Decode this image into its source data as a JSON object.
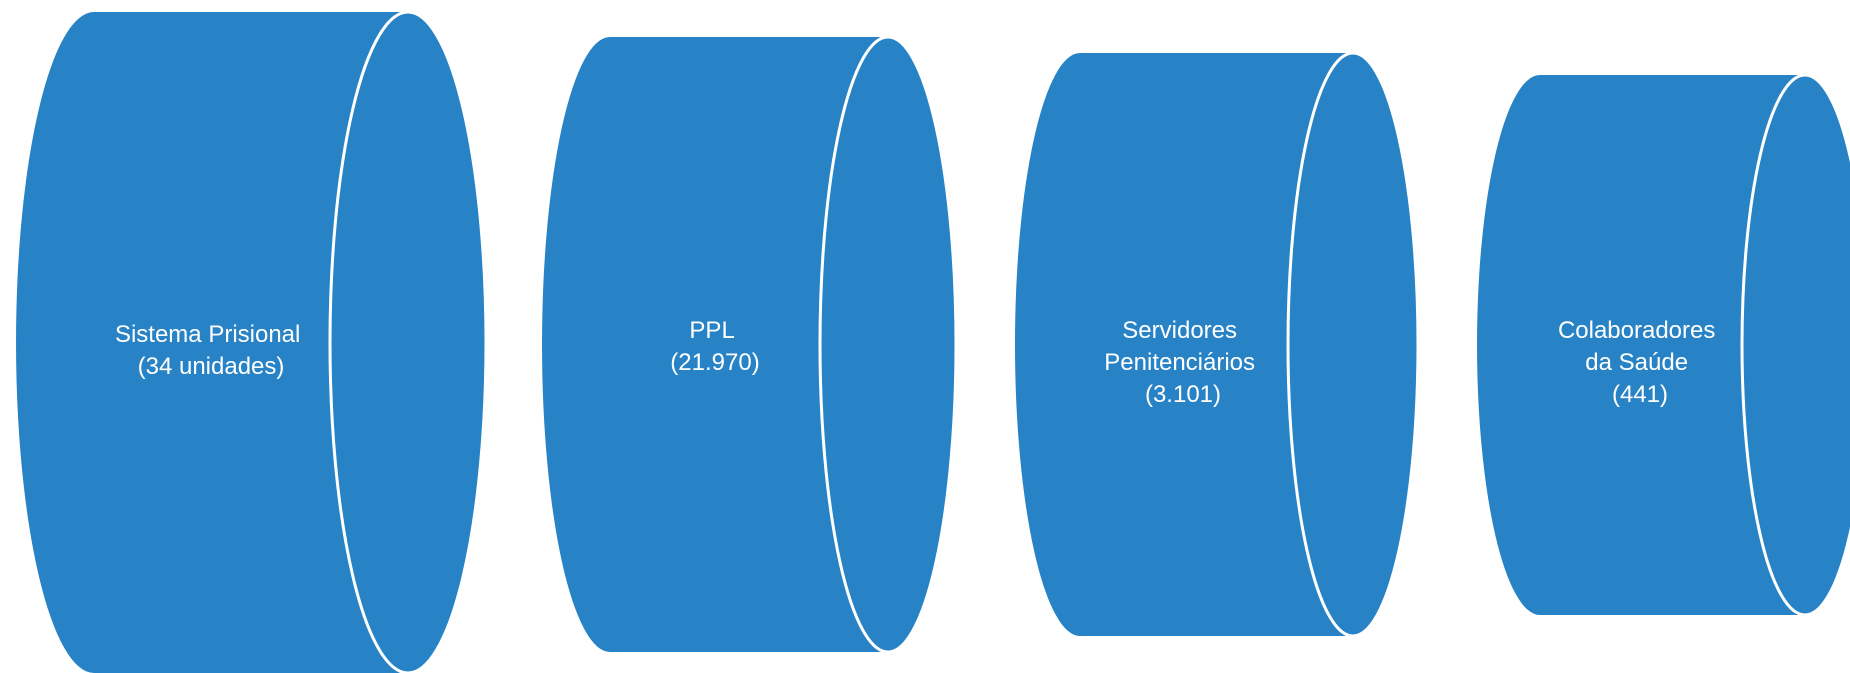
{
  "colors": {
    "fill": "#2883C6",
    "edge": "#ffffff",
    "text": "#ffffff"
  },
  "cylinders": [
    {
      "lines": [
        "Sistema Prisional",
        "(34 unidades)"
      ]
    },
    {
      "lines": [
        "PPL",
        "(21.970)"
      ]
    },
    {
      "lines": [
        "Servidores",
        "Penitenciários",
        "(3.101)"
      ]
    },
    {
      "lines": [
        "Colaboradores",
        "da Saúde",
        "(441)"
      ]
    }
  ]
}
